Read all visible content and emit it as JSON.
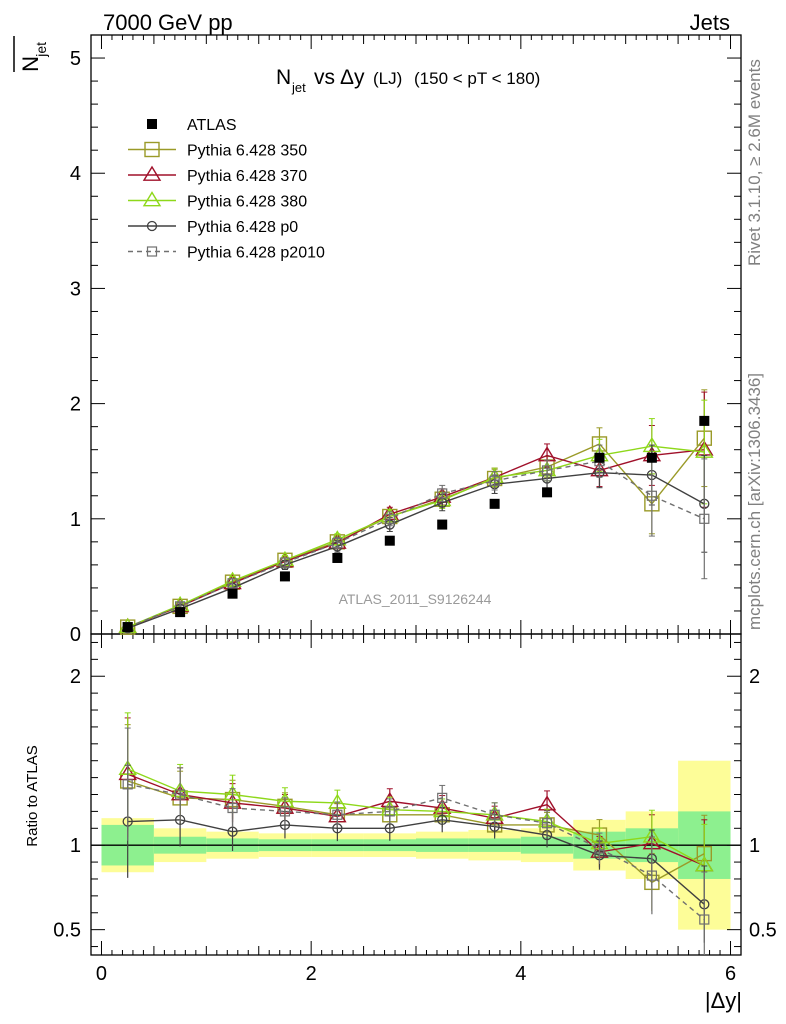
{
  "header": {
    "left": "7000 GeV pp",
    "right": "Jets",
    "side_top": "Rivet 3.1.10, ≥ 2.6M events",
    "side_bottom": "mcplots.cern.ch [arXiv:1306.3436]"
  },
  "chart_data": {
    "type": "scatter",
    "title": "N_jet vs Δy (LJ) (150 < pT < 180)",
    "title_parts": {
      "n": "N",
      "n_sub": "jet",
      "vs": " vs ",
      "dy": "Δy",
      "lj": "(LJ)",
      "range": "(150 < pT < 180)"
    },
    "ylabel": "N_jet",
    "ylabel_parts": {
      "n": "N",
      "sub": "jet"
    },
    "xlabel": "|Δy|",
    "ratio_ylabel": "Ratio to ATLAS",
    "watermark": "ATLAS_2011_S9126244",
    "xlim": [
      -0.1,
      6.1
    ],
    "ylim": [
      0,
      5.2
    ],
    "ratio_ylim": [
      0.35,
      2.25
    ],
    "x_ticks": [
      "0",
      "2",
      "4",
      "6"
    ],
    "y_ticks": [
      "0",
      "1",
      "2",
      "3",
      "4",
      "5"
    ],
    "ratio_ticks": [
      "0.5",
      "1",
      "2"
    ],
    "x": [
      0.25,
      0.75,
      1.25,
      1.75,
      2.25,
      2.75,
      3.25,
      3.75,
      4.25,
      4.75,
      5.25,
      5.75
    ],
    "bin_width": 0.5,
    "legend_position": "top-left",
    "series": [
      {
        "name": "ATLAS",
        "color": "#000000",
        "marker": "filled-square",
        "values": [
          0.06,
          0.19,
          0.35,
          0.5,
          0.66,
          0.81,
          0.95,
          1.13,
          1.23,
          1.53,
          1.53,
          1.85
        ],
        "band_inner": [
          0.12,
          0.05,
          0.04,
          0.035,
          0.035,
          0.035,
          0.04,
          0.04,
          0.05,
          0.08,
          0.1,
          0.2
        ],
        "band_outer": [
          0.16,
          0.1,
          0.08,
          0.07,
          0.07,
          0.07,
          0.08,
          0.09,
          0.1,
          0.15,
          0.2,
          0.5
        ]
      },
      {
        "name": "Pythia 6.428 350",
        "color": "#9a9a28",
        "marker": "open-square",
        "values": [
          0.06,
          0.24,
          0.45,
          0.64,
          0.8,
          1.02,
          1.17,
          1.35,
          1.45,
          1.65,
          1.13,
          1.7
        ],
        "ratio": [
          1.38,
          1.28,
          1.27,
          1.23,
          1.18,
          1.18,
          1.18,
          1.12,
          1.12,
          1.06,
          0.78,
          0.95
        ],
        "err": [
          0.02,
          0.03,
          0.04,
          0.04,
          0.05,
          0.06,
          0.07,
          0.08,
          0.09,
          0.14,
          0.26,
          0.42
        ]
      },
      {
        "name": "Pythia 6.428 370",
        "color": "#a0102a",
        "marker": "open-triangle",
        "values": [
          0.06,
          0.24,
          0.44,
          0.63,
          0.79,
          1.04,
          1.19,
          1.36,
          1.55,
          1.42,
          1.55,
          1.6
        ],
        "ratio": [
          1.42,
          1.3,
          1.25,
          1.22,
          1.17,
          1.26,
          1.22,
          1.16,
          1.24,
          0.96,
          1.01,
          0.88
        ],
        "err": [
          0.02,
          0.03,
          0.04,
          0.04,
          0.05,
          0.06,
          0.07,
          0.08,
          0.1,
          0.14,
          0.26,
          0.5
        ]
      },
      {
        "name": "Pythia 6.428 380",
        "color": "#8ed81a",
        "marker": "open-triangle",
        "values": [
          0.06,
          0.25,
          0.46,
          0.64,
          0.82,
          1.02,
          1.16,
          1.36,
          1.42,
          1.55,
          1.63,
          1.58
        ],
        "ratio": [
          1.45,
          1.32,
          1.3,
          1.26,
          1.25,
          1.21,
          1.2,
          1.18,
          1.14,
          1.01,
          1.05,
          0.88
        ],
        "err": [
          0.02,
          0.03,
          0.04,
          0.04,
          0.05,
          0.06,
          0.07,
          0.08,
          0.09,
          0.14,
          0.24,
          0.45
        ]
      },
      {
        "name": "Pythia 6.428 p0",
        "color": "#404040",
        "marker": "open-circle",
        "values": [
          0.05,
          0.22,
          0.4,
          0.6,
          0.76,
          0.95,
          1.14,
          1.3,
          1.35,
          1.4,
          1.38,
          1.13
        ],
        "ratio": [
          1.14,
          1.15,
          1.08,
          1.12,
          1.1,
          1.1,
          1.15,
          1.11,
          1.06,
          0.94,
          0.92,
          0.65
        ],
        "err": [
          0.02,
          0.03,
          0.04,
          0.04,
          0.05,
          0.06,
          0.07,
          0.08,
          0.09,
          0.13,
          0.26,
          0.42
        ]
      },
      {
        "name": "Pythia 6.428 p2010",
        "color": "#707070",
        "marker": "open-square-small",
        "dashed": true,
        "values": [
          0.06,
          0.24,
          0.44,
          0.62,
          0.79,
          1.0,
          1.22,
          1.33,
          1.42,
          1.5,
          1.2,
          1.0
        ],
        "ratio": [
          1.36,
          1.3,
          1.22,
          1.2,
          1.18,
          1.2,
          1.28,
          1.18,
          1.13,
          0.98,
          0.82,
          0.56
        ],
        "err": [
          0.02,
          0.03,
          0.04,
          0.04,
          0.05,
          0.06,
          0.07,
          0.08,
          0.09,
          0.14,
          0.35,
          0.52
        ]
      }
    ]
  }
}
